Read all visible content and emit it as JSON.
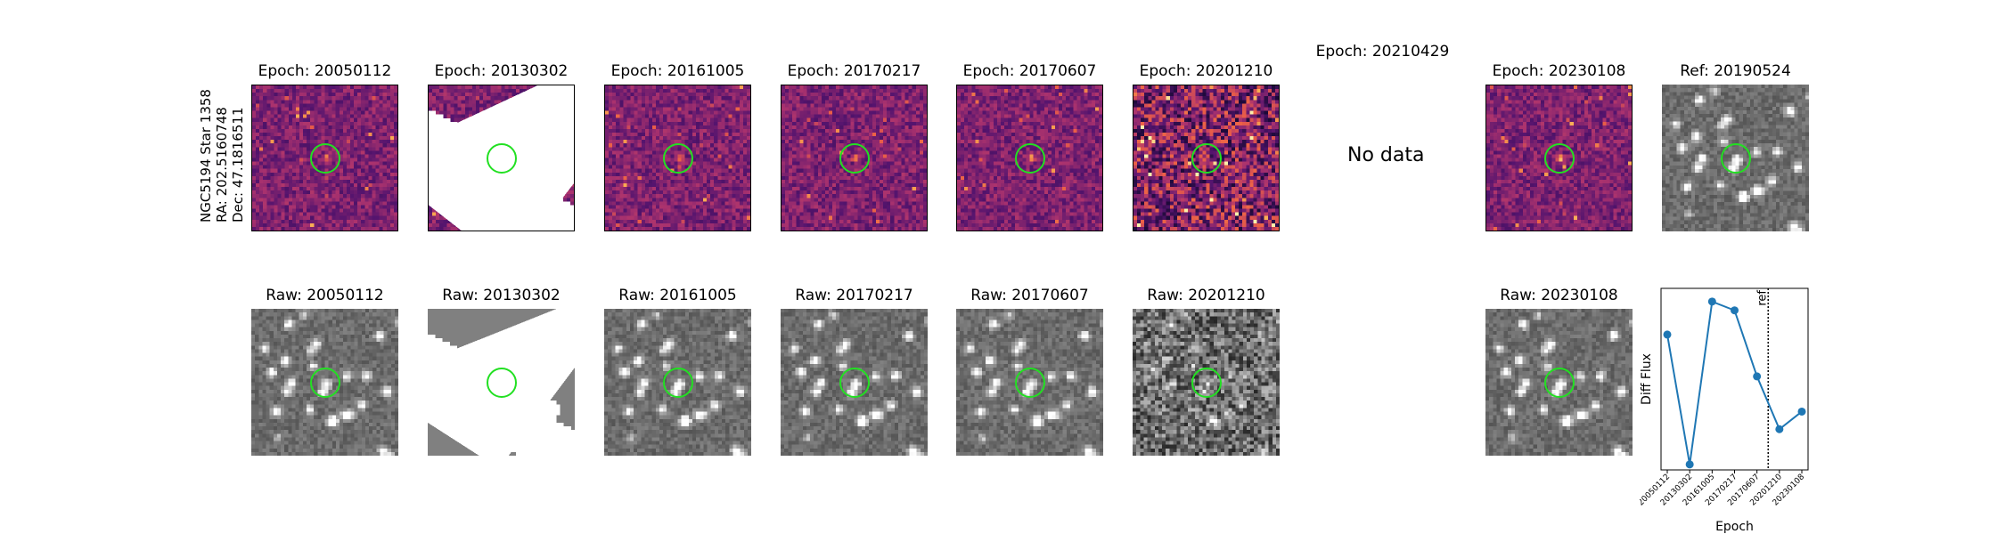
{
  "object_info": {
    "line1": "NGC5194 Star 1358",
    "line2": "RA: 202.5160748",
    "line3": "Dec: 47.1816511"
  },
  "top_row": [
    {
      "title": "Epoch: 20050112",
      "kind": "diff"
    },
    {
      "title": "Epoch: 20130302",
      "kind": "diff-partial"
    },
    {
      "title": "Epoch: 20161005",
      "kind": "diff"
    },
    {
      "title": "Epoch: 20170217",
      "kind": "diff"
    },
    {
      "title": "Epoch: 20170607",
      "kind": "diff"
    },
    {
      "title": "Epoch: 20201210",
      "kind": "diff-noisy"
    },
    {
      "title": "Epoch: 20210429",
      "kind": "none",
      "message": "No data"
    },
    {
      "title": "Epoch: 20230108",
      "kind": "diff"
    },
    {
      "title": "Ref: 20190524",
      "kind": "ref"
    }
  ],
  "bottom_row": [
    {
      "title": "Raw: 20050112",
      "kind": "raw"
    },
    {
      "title": "Raw: 20130302",
      "kind": "raw-partial"
    },
    {
      "title": "Raw: 20161005",
      "kind": "raw"
    },
    {
      "title": "Raw: 20170217",
      "kind": "raw"
    },
    {
      "title": "Raw: 20170607",
      "kind": "raw"
    },
    {
      "title": "Raw: 20201210",
      "kind": "raw-noisy"
    },
    {
      "title": "Raw: 20230108",
      "kind": "raw"
    }
  ],
  "colors": {
    "ring": "#22e022",
    "series": "#1f77b4"
  },
  "chart_data": {
    "type": "line",
    "title": "",
    "xlabel": "Epoch",
    "ylabel": "Diff Flux",
    "categories": [
      "20050112",
      "20130302",
      "20161005",
      "20170217",
      "20170607",
      "20201210",
      "20230108"
    ],
    "series": [
      {
        "values": [
          0.68,
          -0.5,
          0.98,
          0.9,
          0.3,
          -0.18,
          -0.02
        ]
      }
    ],
    "ref_line": {
      "label": "ref",
      "position_between": [
        "20170607",
        "20201210"
      ]
    },
    "ylim": [
      -0.55,
      1.1
    ],
    "y_ticks_shown": false,
    "grid": false
  }
}
